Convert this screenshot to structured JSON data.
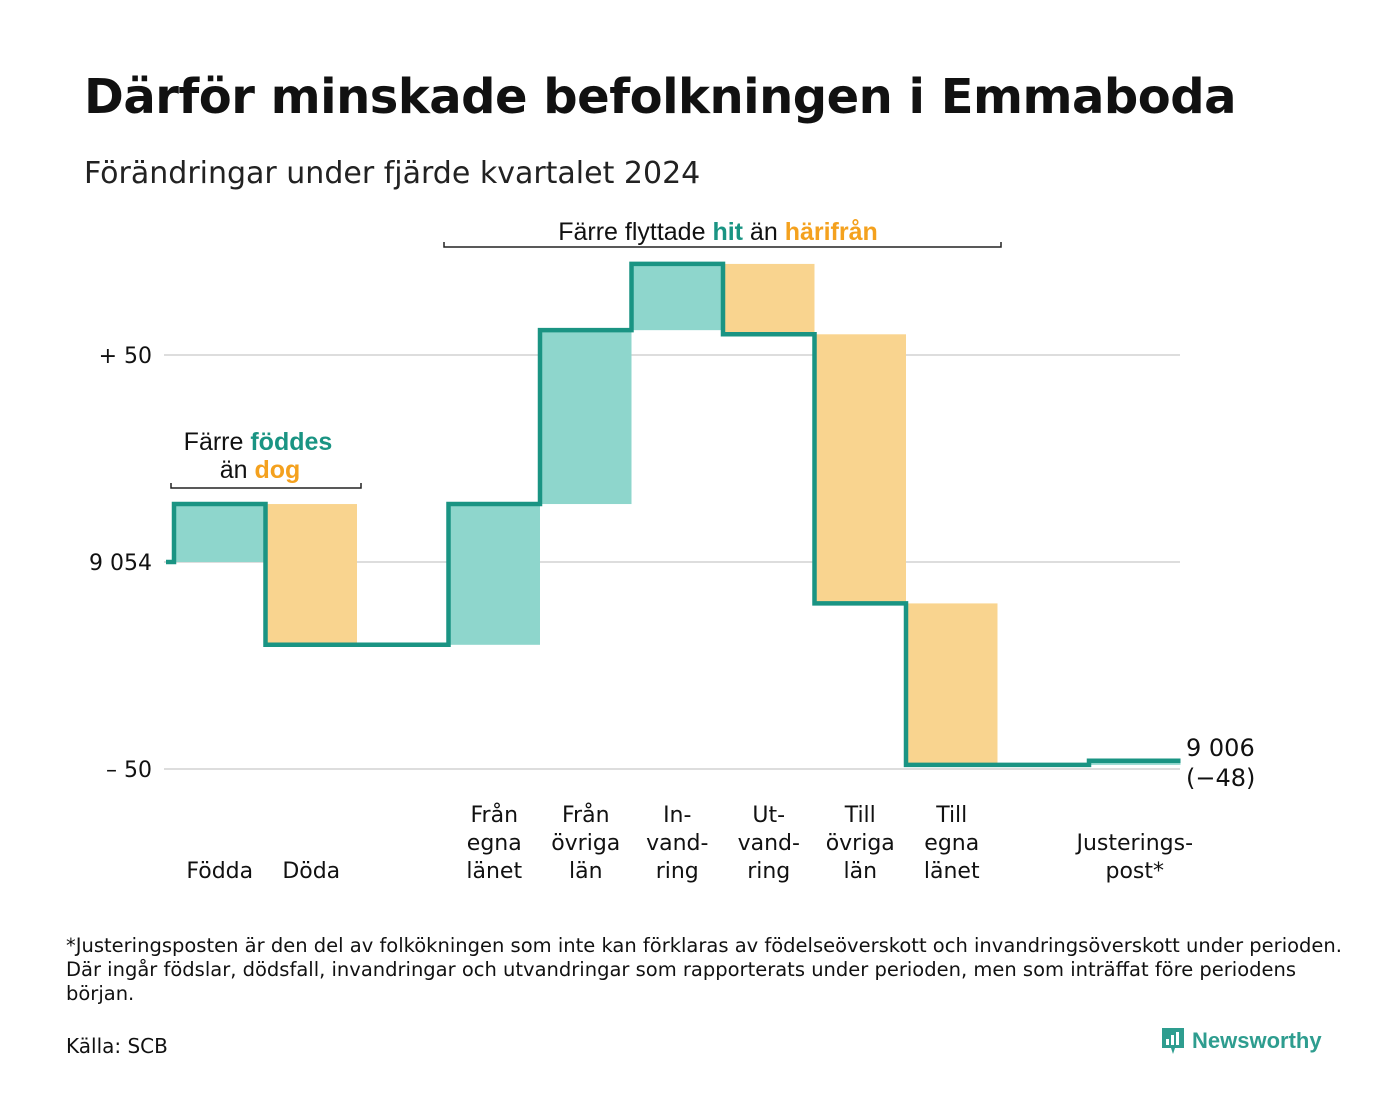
{
  "title": "Därför minskade befolkningen i Emmaboda",
  "subtitle": "Förändringar under fjärde kvartalet 2024",
  "colors": {
    "increase": "#8ed6cc",
    "decrease": "#f9d48f",
    "line": "#1a9483",
    "teal_text": "#1a9483",
    "orange_text": "#f4a11e",
    "grid": "#dddddd"
  },
  "chart_data": {
    "type": "waterfall",
    "start_value": 9054,
    "end_value": 9006,
    "end_change": "(−48)",
    "end_label": "9 006",
    "steps": [
      {
        "label_lines": [
          "Födda"
        ],
        "change": 14,
        "kind": "increase"
      },
      {
        "label_lines": [
          "Döda"
        ],
        "change": -34,
        "kind": "decrease"
      },
      {
        "label_lines": [],
        "change": 0,
        "kind": "gap"
      },
      {
        "label_lines": [
          "Från",
          "egna",
          "länet"
        ],
        "change": 34,
        "kind": "increase"
      },
      {
        "label_lines": [
          "Från",
          "övriga",
          "län"
        ],
        "change": 42,
        "kind": "increase"
      },
      {
        "label_lines": [
          "In-",
          "vand-",
          "ring"
        ],
        "change": 16,
        "kind": "increase"
      },
      {
        "label_lines": [
          "Ut-",
          "vand-",
          "ring"
        ],
        "change": -17,
        "kind": "decrease"
      },
      {
        "label_lines": [
          "Till",
          "övriga",
          "län"
        ],
        "change": -65,
        "kind": "decrease"
      },
      {
        "label_lines": [
          "Till",
          "egna",
          "länet"
        ],
        "change": -39,
        "kind": "decrease"
      },
      {
        "label_lines": [],
        "change": 0,
        "kind": "gap"
      },
      {
        "label_lines": [
          "Justerings-",
          "post*"
        ],
        "change": 1,
        "kind": "increase"
      }
    ],
    "y_ticks": [
      {
        "offset": 50,
        "label": "+ 50"
      },
      {
        "offset": 0,
        "label": "9 054"
      },
      {
        "offset": -50,
        "label": "– 50"
      }
    ],
    "ylim": [
      -52,
      72
    ],
    "annotations": {
      "births": {
        "prefix": "Färre",
        "teal": "föddes",
        "line2_prefix": "än",
        "orange": "dog"
      },
      "migration": {
        "prefix": "Färre flyttade",
        "teal": "hit",
        "middle": "än",
        "orange": "härifrån"
      }
    }
  },
  "footnote": "*Justeringsposten är den del av folkökningen som inte kan förklaras av födelseöverskott och invandringsöverskott under perioden. Där ingår födslar, dödsfall, invandringar och utvandringar som rapporterats under perioden, men som inträffat före periodens början.",
  "source": "Källa: SCB",
  "brand": {
    "name": "Newsworthy",
    "icon": "newsworthy-logo-icon"
  }
}
